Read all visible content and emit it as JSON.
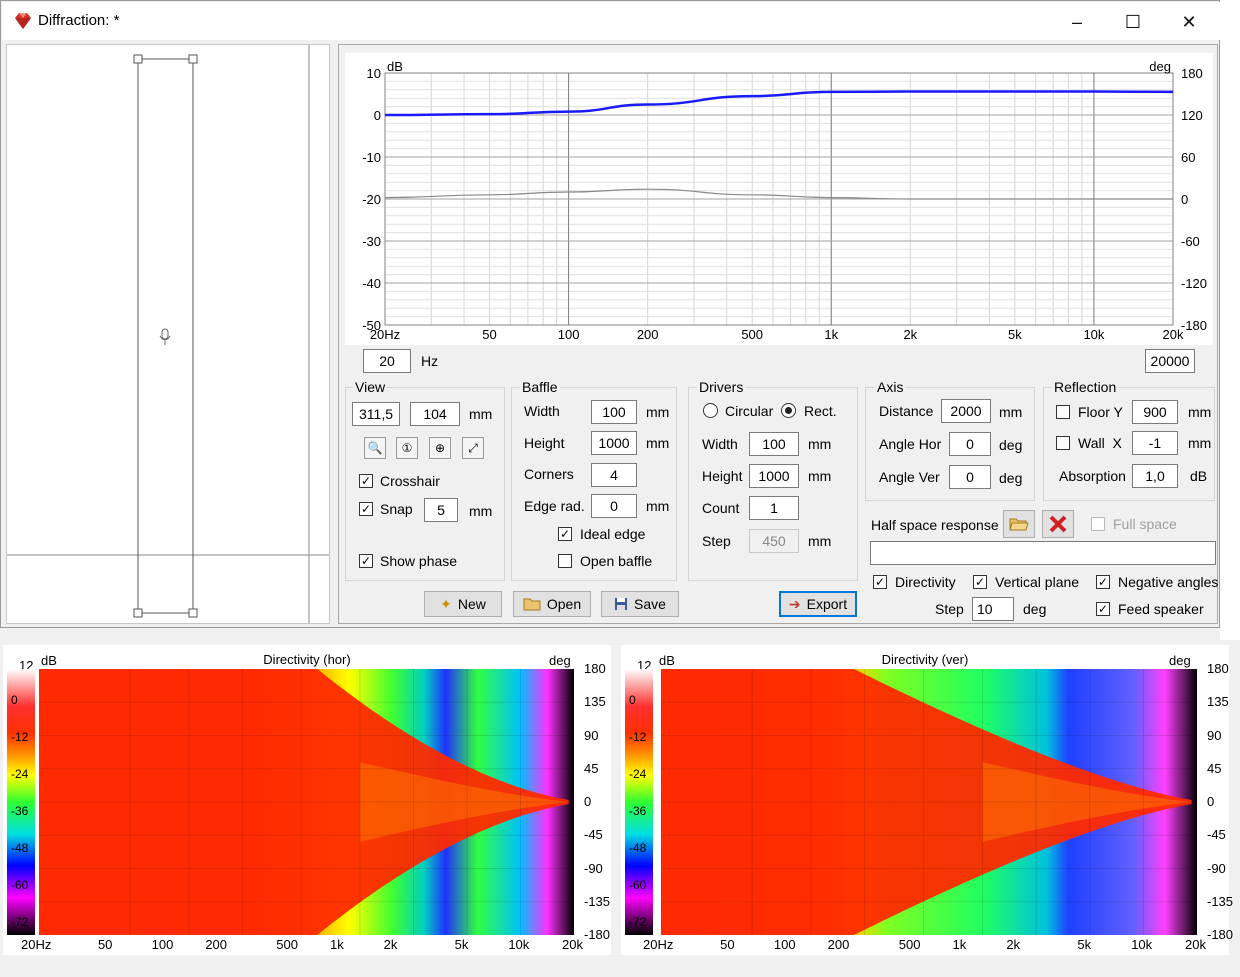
{
  "window": {
    "title": "Diffraction: *",
    "minimize": "–",
    "maximize": "☐",
    "close": "✕"
  },
  "chart_data": [
    {
      "type": "line",
      "x_scale": "log",
      "xlim": [
        20,
        20000
      ],
      "x_ticks": [
        "20Hz",
        "50",
        "100",
        "200",
        "500",
        "1k",
        "2k",
        "5k",
        "10k",
        "20k"
      ],
      "ylim": [
        -50,
        10
      ],
      "y_ticks": [
        "10",
        "0",
        "-10",
        "-20",
        "-30",
        "-40",
        "-50"
      ],
      "ylabel": "dB",
      "y2lim": [
        -180,
        180
      ],
      "y2_ticks": [
        "180",
        "120",
        "60",
        "0",
        "-60",
        "-120",
        "-180"
      ],
      "y2label": "deg",
      "grid": true,
      "series": [
        {
          "role": "magnitude",
          "color": "#1a1aff",
          "x": [
            20,
            50,
            100,
            200,
            500,
            1000,
            2000,
            5000,
            10000,
            20000
          ],
          "y": [
            0,
            0.2,
            0.8,
            2.5,
            4.5,
            5.5,
            5.6,
            5.6,
            5.6,
            5.5
          ]
        },
        {
          "role": "phase",
          "color": "#888888",
          "x": [
            20,
            50,
            100,
            200,
            500,
            1000,
            2000,
            5000,
            10000,
            20000
          ],
          "y": [
            2,
            6,
            10,
            14,
            6,
            2,
            0,
            0,
            0,
            0
          ]
        }
      ]
    },
    {
      "type": "heatmap",
      "title": "Directivity (hor)",
      "x_scale": "log",
      "x_ticks": [
        "20Hz",
        "50",
        "100",
        "200",
        "500",
        "1k",
        "2k",
        "5k",
        "10k",
        "20k"
      ],
      "ylabel": "deg",
      "y_ticks": [
        "180",
        "135",
        "90",
        "45",
        "0",
        "-45",
        "-90",
        "-135",
        "-180"
      ],
      "colorbar_label": "dB",
      "colorbar_ticks": [
        "12",
        "0",
        "-12",
        "-24",
        "-36",
        "-48",
        "-60",
        "-72"
      ]
    },
    {
      "type": "heatmap",
      "title": "Directivity (ver)",
      "x_scale": "log",
      "x_ticks": [
        "20Hz",
        "50",
        "100",
        "200",
        "500",
        "1k",
        "2k",
        "5k",
        "10k",
        "20k"
      ],
      "ylabel": "deg",
      "y_ticks": [
        "180",
        "135",
        "90",
        "45",
        "0",
        "-45",
        "-90",
        "-135",
        "-180"
      ],
      "colorbar_label": "dB",
      "colorbar_ticks": [
        "12",
        "0",
        "-12",
        "-24",
        "-36",
        "-48",
        "-60",
        "-72"
      ]
    }
  ],
  "range": {
    "min": "20",
    "unit": "Hz",
    "max": "20000"
  },
  "view": {
    "title": "View",
    "x": "311,5",
    "y": "104",
    "unit": "mm",
    "crosshair": "Crosshair",
    "snap": "Snap",
    "snap_value": "5",
    "snap_unit": "mm",
    "show_phase": "Show phase"
  },
  "baffle": {
    "title": "Baffle",
    "width_label": "Width",
    "width": "100",
    "height_label": "Height",
    "height": "1000",
    "corners_label": "Corners",
    "corners": "4",
    "edge_label": "Edge rad.",
    "edge": "0",
    "unit": "mm",
    "ideal_edge": "Ideal edge",
    "open_baffle": "Open baffle"
  },
  "drivers": {
    "title": "Drivers",
    "circular": "Circular",
    "rect": "Rect.",
    "width_label": "Width",
    "width": "100",
    "height_label": "Height",
    "height": "1000",
    "count_label": "Count",
    "count": "1",
    "step_label": "Step",
    "step": "450",
    "unit": "mm"
  },
  "axis": {
    "title": "Axis",
    "distance_label": "Distance",
    "distance": "2000",
    "distance_unit": "mm",
    "angle_hor_label": "Angle Hor",
    "angle_hor": "0",
    "angle_ver_label": "Angle Ver",
    "angle_ver": "0",
    "deg": "deg"
  },
  "reflection": {
    "title": "Reflection",
    "floor_label": "Floor Y",
    "floor": "900",
    "wall_label": "Wall  X",
    "wall": "-1",
    "mm": "mm",
    "absorption_label": "Absorption",
    "absorption": "1,0",
    "db": "dB"
  },
  "half_space": {
    "label": "Half space response",
    "full_space": "Full space",
    "path": ""
  },
  "directivity": {
    "directivity": "Directivity",
    "vertical_plane": "Vertical plane",
    "negative_angles": "Negative angles",
    "step_label": "Step",
    "step": "10",
    "deg": "deg",
    "feed_speaker": "Feed speaker"
  },
  "buttons": {
    "new": "New",
    "open": "Open",
    "save": "Save",
    "export": "Export"
  },
  "colors": {
    "accent": "#0078d7",
    "magnitude": "#1a1aff"
  }
}
